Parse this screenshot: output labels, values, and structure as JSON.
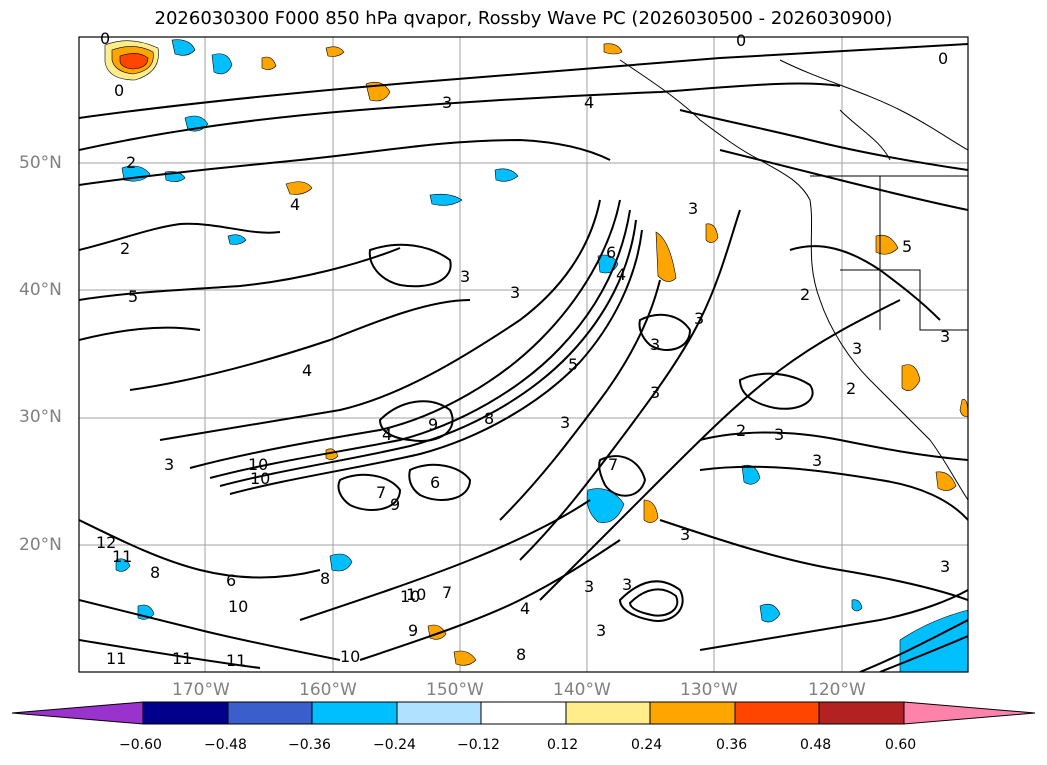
{
  "title": "2026030300 F000 850 hPa qvapor, Rossby Wave PC (2026030500 - 2026030900)",
  "lat_labels": [
    "50°N",
    "40°N",
    "30°N",
    "20°N"
  ],
  "lon_labels": [
    "170°W",
    "160°W",
    "150°W",
    "140°W",
    "130°W",
    "120°W"
  ],
  "colorbar": {
    "ticks": [
      "−0.60",
      "−0.48",
      "−0.36",
      "−0.24",
      "−0.12",
      "0.12",
      "0.24",
      "0.36",
      "0.48",
      "0.60"
    ],
    "colors": [
      "#9a32cd",
      "#00008b",
      "#3a5fcd",
      "#00bfff",
      "#b0e2ff",
      "#ffffff",
      "#ffec8b",
      "#ffa500",
      "#ff4500",
      "#b22222",
      "#ff82ab"
    ]
  },
  "contour_labels": [
    "0",
    "0",
    "0",
    "0",
    "3",
    "4",
    "2",
    "2",
    "4",
    "5",
    "3",
    "3",
    "3",
    "3",
    "3",
    "4",
    "4",
    "9",
    "8",
    "3",
    "2",
    "3",
    "2",
    "3",
    "2",
    "3",
    "3",
    "6",
    "10",
    "9",
    "6",
    "7",
    "8",
    "10",
    "11",
    "12",
    "11",
    "8",
    "10",
    "10",
    "9",
    "7",
    "10",
    "11",
    "11",
    "8",
    "4",
    "7",
    "3",
    "3",
    "3",
    "3",
    "5",
    "5",
    "6",
    "4",
    "3",
    "3",
    "3",
    "10"
  ]
}
